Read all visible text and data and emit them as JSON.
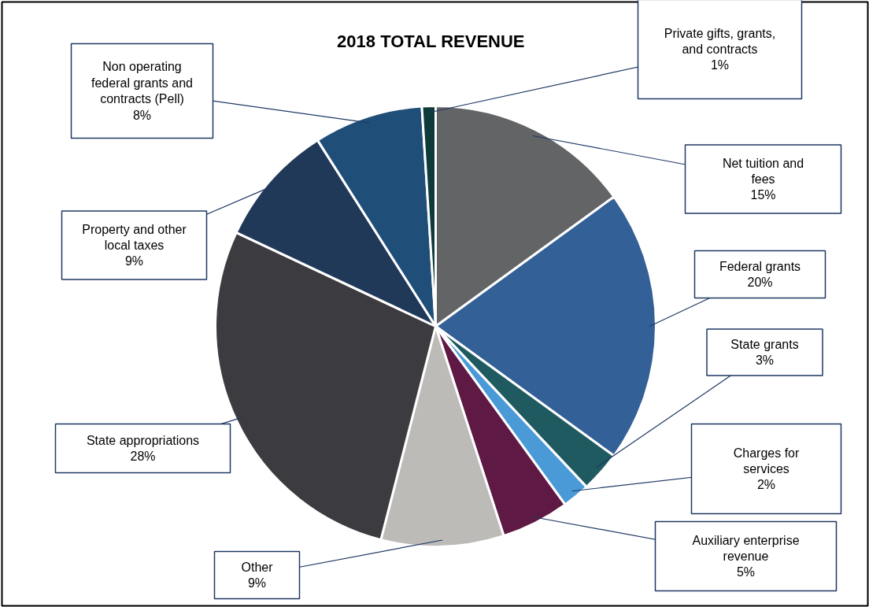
{
  "chart_data": {
    "type": "pie",
    "title": "2018 TOTAL REVENUE",
    "categories": [
      "Net tuition and fees",
      "Federal grants",
      "State grants",
      "Charges for services",
      "Auxiliary enterprise revenue",
      "Other",
      "State appropriations",
      "Property and other local taxes",
      "Non operating federal grants and contracts (Pell)",
      "Private gifts, grants, and contracts"
    ],
    "values": [
      15,
      20,
      3,
      2,
      5,
      9,
      28,
      9,
      8,
      1
    ],
    "value_labels": [
      "15%",
      "20%",
      "3%",
      "2%",
      "5%",
      "9%",
      "28%",
      "9%",
      "8%",
      "1%"
    ],
    "colors": [
      "#636466",
      "#336096",
      "#1f5a60",
      "#4a9ad8",
      "#5e1a45",
      "#bdbbb8",
      "#3c3c40",
      "#213959",
      "#1f4e79",
      "#0f3a3a"
    ]
  }
}
